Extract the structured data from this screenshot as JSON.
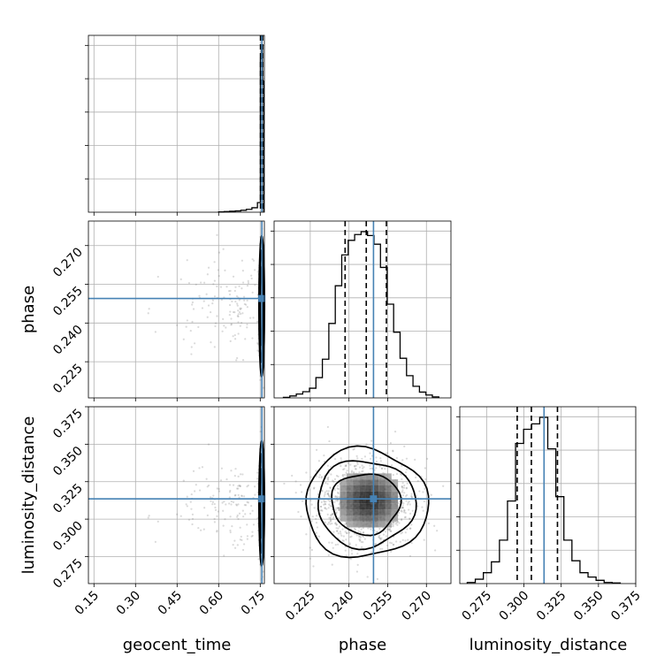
{
  "chart_data": {
    "type": "corner",
    "parameters": [
      "geocent_time",
      "phase",
      "luminosity_distance"
    ],
    "axes": {
      "geocent_time": {
        "label": "geocent_time",
        "range": [
          0.13,
          0.765
        ],
        "ticks": [
          "0.15",
          "0.30",
          "0.45",
          "0.60",
          "0.75"
        ]
      },
      "phase": {
        "label": "phase",
        "range": [
          0.211,
          0.2795
        ],
        "ticks": [
          "0.225",
          "0.240",
          "0.255",
          "0.270"
        ]
      },
      "luminosity_distance": {
        "label": "luminosity_distance",
        "range": [
          0.257,
          0.375
        ],
        "ticks": [
          "0.275",
          "0.300",
          "0.325",
          "0.350",
          "0.375"
        ]
      }
    },
    "truth": {
      "geocent_time": 0.756,
      "phase": 0.2495,
      "luminosity_distance": 0.3135
    },
    "quantiles": {
      "geocent_time": [
        0.751,
        0.755,
        0.759
      ],
      "phase": [
        0.2385,
        0.2467,
        0.2545
      ],
      "luminosity_distance": [
        0.2955,
        0.305,
        0.3225
      ]
    },
    "histograms": {
      "geocent_time": {
        "edges": [
          0.6,
          0.62,
          0.64,
          0.66,
          0.68,
          0.7,
          0.72,
          0.74,
          0.7505,
          0.7545,
          0.7585,
          0.7625
        ],
        "counts": [
          1,
          2,
          3,
          4,
          6,
          9,
          14,
          30,
          480,
          520,
          410
        ]
      },
      "phase": {
        "edges": [
          0.2146,
          0.2171,
          0.2196,
          0.2221,
          0.2247,
          0.2272,
          0.2297,
          0.2322,
          0.2347,
          0.2372,
          0.2397,
          0.2422,
          0.2447,
          0.2472,
          0.2497,
          0.2522,
          0.2548,
          0.2573,
          0.2598,
          0.2623,
          0.2648,
          0.2673,
          0.2698,
          0.2723,
          0.2748
        ],
        "counts": [
          0.3,
          1.0,
          2.0,
          3.2,
          5.0,
          10.5,
          20.0,
          38.5,
          58.0,
          74.0,
          81.5,
          84.5,
          86.0,
          84.0,
          79.5,
          67.5,
          48.5,
          34.0,
          20.5,
          11.5,
          6.0,
          3.0,
          1.5,
          0.5
        ]
      },
      "luminosity_distance": {
        "edges": [
          0.262,
          0.2674,
          0.2728,
          0.2782,
          0.2836,
          0.289,
          0.2944,
          0.2998,
          0.3052,
          0.3106,
          0.316,
          0.3214,
          0.3268,
          0.3322,
          0.3376,
          0.343,
          0.3484,
          0.3538,
          0.3592,
          0.3646
        ],
        "counts": [
          0.5,
          2.0,
          5.0,
          10.0,
          20.0,
          38.0,
          64.5,
          71.0,
          73.5,
          76.5,
          62.0,
          40.0,
          20.0,
          10.5,
          5.0,
          3.0,
          1.5,
          0.5,
          0.3
        ]
      }
    },
    "contour_levels": [
      1.4,
      2.0,
      2.5
    ],
    "samples": {
      "n": 1300,
      "geocent_time": {
        "center": 0.7555,
        "spread": 0.0045,
        "tail_fraction": 0.1
      },
      "phase": {
        "center": 0.2465,
        "spread": 0.0095
      },
      "luminosity_distance": {
        "center": 0.3105,
        "spread": 0.0145
      }
    }
  }
}
